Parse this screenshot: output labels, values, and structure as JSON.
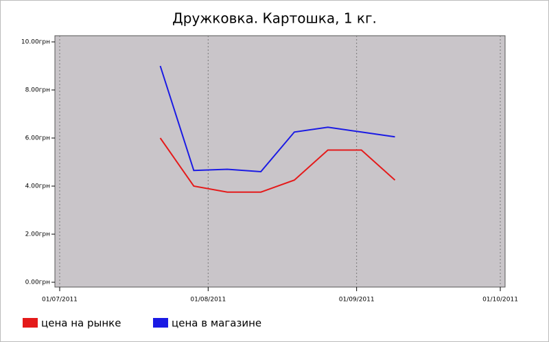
{
  "chart_data": {
    "type": "line",
    "title": "Дружковка. Картошка, 1 кг.",
    "x": [
      "2011-07-22",
      "2011-07-29",
      "2011-08-05",
      "2011-08-12",
      "2011-08-19",
      "2011-08-26",
      "2011-09-02",
      "2011-09-09"
    ],
    "series": [
      {
        "name": "цена на рынке",
        "color": "#e41a1a",
        "values": [
          6.0,
          4.0,
          3.75,
          3.75,
          4.25,
          5.5,
          5.5,
          4.25
        ]
      },
      {
        "name": "цена в магазине",
        "color": "#1a1ae4",
        "values": [
          9.0,
          4.65,
          4.7,
          4.6,
          6.25,
          6.45,
          6.25,
          6.05
        ]
      }
    ],
    "xlim": [
      "2011-06-30",
      "2011-10-02"
    ],
    "xticks": [
      {
        "value": "2011-07-01",
        "label": "01/07/2011"
      },
      {
        "value": "2011-08-01",
        "label": "01/08/2011"
      },
      {
        "value": "2011-09-01",
        "label": "01/09/2011"
      },
      {
        "value": "2011-10-01",
        "label": "01/10/2011"
      }
    ],
    "ylim": [
      0,
      10
    ],
    "yticks": [
      {
        "value": 0,
        "label": "0.00грн"
      },
      {
        "value": 2,
        "label": "2.00грн"
      },
      {
        "value": 4,
        "label": "4.00грн"
      },
      {
        "value": 6,
        "label": "6.00грн"
      },
      {
        "value": 8,
        "label": "8.00грн"
      },
      {
        "value": 10,
        "label": "10.00грн"
      }
    ],
    "grid": "x",
    "legend": "bottom-left"
  }
}
